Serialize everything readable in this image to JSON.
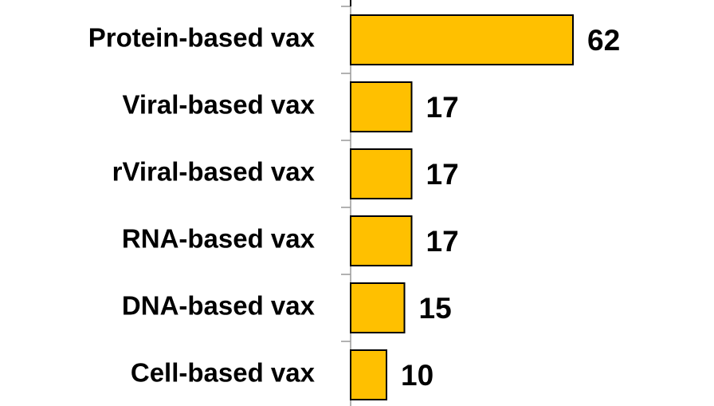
{
  "chart_data": {
    "type": "hbar",
    "categories": [
      "Protein-based vax",
      "Viral-based vax",
      "rViral-based vax",
      "RNA-based vax",
      "DNA-based vax",
      "Cell-based vax"
    ],
    "values": [
      62,
      17,
      17,
      17,
      15,
      10
    ],
    "color": "#FFC000",
    "xlim": [
      0,
      100
    ]
  }
}
